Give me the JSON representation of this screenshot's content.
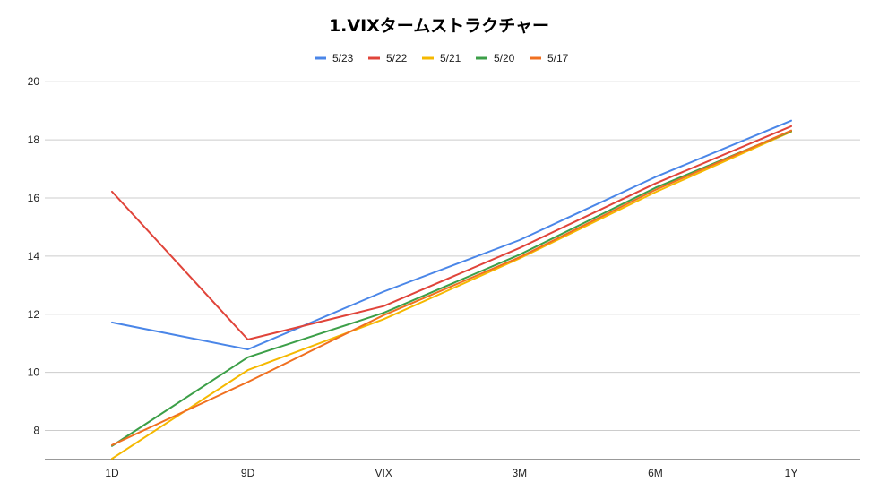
{
  "chart_data": {
    "type": "line",
    "title": "1.VIXタームストラクチャー",
    "xlabel": "",
    "ylabel": "",
    "categories": [
      "1D",
      "9D",
      "VIX",
      "3M",
      "6M",
      "1Y"
    ],
    "ylim": [
      7,
      20.5
    ],
    "yticks": [
      8,
      10,
      12,
      14,
      16,
      18,
      20
    ],
    "grid": true,
    "legend_position": "top",
    "series": [
      {
        "name": "5/23",
        "color": "#4a86e8",
        "values": [
          11.72,
          10.79,
          12.78,
          14.55,
          16.72,
          18.66
        ]
      },
      {
        "name": "5/22",
        "color": "#e0443a",
        "values": [
          16.22,
          11.13,
          12.28,
          14.28,
          16.5,
          18.47
        ]
      },
      {
        "name": "5/21",
        "color": "#f5b800",
        "values": [
          7.03,
          10.08,
          11.83,
          13.92,
          16.2,
          18.28
        ]
      },
      {
        "name": "5/20",
        "color": "#3c9f48",
        "values": [
          7.47,
          10.52,
          12.05,
          14.05,
          16.35,
          18.3
        ]
      },
      {
        "name": "5/17",
        "color": "#f07020",
        "values": [
          7.5,
          9.67,
          11.97,
          13.96,
          16.28,
          18.32
        ]
      }
    ]
  }
}
